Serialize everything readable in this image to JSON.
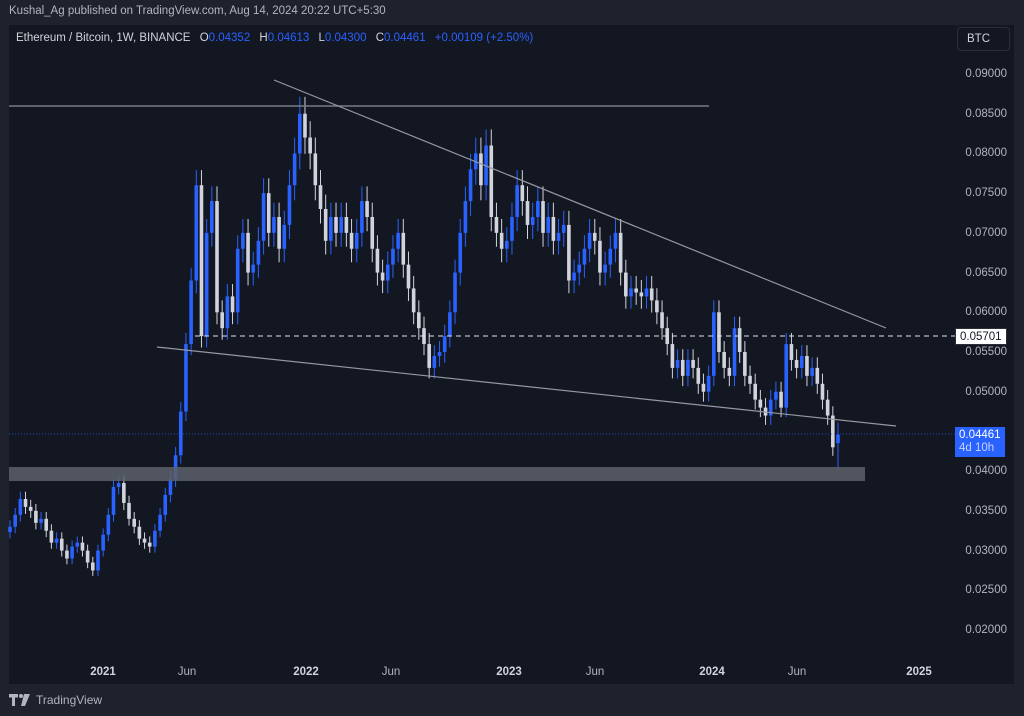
{
  "publish_line": "Kushal_Ag published on TradingView.com, Aug 14, 2024 20:22 UTC+5:30",
  "legend": {
    "symbol": "Ethereum / Bitcoin, 1W, BINANCE",
    "open_label": "O",
    "open": "0.04352",
    "high_label": "H",
    "high": "0.04613",
    "low_label": "L",
    "low": "0.04300",
    "close_label": "C",
    "close": "0.04461",
    "change": "+0.00109 (+2.50%)"
  },
  "currency_button": "BTC",
  "price_tags": {
    "level_value": "0.05701",
    "last_price": "0.04461",
    "countdown": "4d 10h"
  },
  "footer": {
    "brand": "TradingView",
    "logo_icon": "tradingview-logo-icon"
  },
  "colors": {
    "up": "#2962ff",
    "down": "#d1d4dc",
    "background": "#131722",
    "outer": "#1e222d",
    "line": "#787b86"
  },
  "chart_data": {
    "type": "candlestick",
    "title": "Ethereum / Bitcoin, 1W, BINANCE",
    "xlabel": "",
    "ylabel": "BTC",
    "ylim": [
      0.0175,
      0.0925
    ],
    "y_ticks": [
      "0.09000",
      "0.08500",
      "0.08000",
      "0.07500",
      "0.07000",
      "0.06500",
      "0.06000",
      "0.05500",
      "0.05000",
      "0.04000",
      "0.03500",
      "0.03000",
      "0.02500",
      "0.02000"
    ],
    "x_ticks": [
      {
        "label": "2021",
        "year": true
      },
      {
        "label": "Jun",
        "year": false
      },
      {
        "label": "2022",
        "year": true
      },
      {
        "label": "Jun",
        "year": false
      },
      {
        "label": "2023",
        "year": true
      },
      {
        "label": "Jun",
        "year": false
      },
      {
        "label": "2024",
        "year": true
      },
      {
        "label": "Jun",
        "year": false
      },
      {
        "label": "2025",
        "year": true
      }
    ],
    "annotations": [
      {
        "type": "horizontal_segment",
        "price": 0.086,
        "from": "2020-08",
        "to": "2024-02",
        "label": "resistance"
      },
      {
        "type": "trendline",
        "from": {
          "date": "2021-12",
          "price": 0.0884
        },
        "to": {
          "date": "2024-10",
          "price": 0.0579
        },
        "label": "descending resistance"
      },
      {
        "type": "trendline",
        "from": {
          "date": "2021-05",
          "price": 0.0555
        },
        "to": {
          "date": "2024-10",
          "price": 0.0455
        },
        "label": "descending support"
      },
      {
        "type": "horizontal_dashed",
        "price": 0.05701
      },
      {
        "type": "zone",
        "price_from": 0.039,
        "price_to": 0.0407,
        "label": "support zone"
      }
    ],
    "weekly_closes_approx": [
      0.033,
      0.0345,
      0.0365,
      0.0355,
      0.035,
      0.0335,
      0.034,
      0.0325,
      0.031,
      0.0315,
      0.03,
      0.029,
      0.0305,
      0.031,
      0.03,
      0.0285,
      0.0275,
      0.03,
      0.032,
      0.0345,
      0.038,
      0.0385,
      0.036,
      0.034,
      0.033,
      0.0315,
      0.031,
      0.0305,
      0.0325,
      0.0345,
      0.037,
      0.039,
      0.042,
      0.0475,
      0.056,
      0.064,
      0.076,
      0.057,
      0.07,
      0.074,
      0.06,
      0.058,
      0.062,
      0.06,
      0.068,
      0.07,
      0.065,
      0.066,
      0.069,
      0.075,
      0.07,
      0.072,
      0.068,
      0.071,
      0.076,
      0.08,
      0.085,
      0.082,
      0.08,
      0.076,
      0.073,
      0.069,
      0.072,
      0.07,
      0.072,
      0.07,
      0.068,
      0.07,
      0.074,
      0.072,
      0.068,
      0.065,
      0.064,
      0.066,
      0.068,
      0.07,
      0.066,
      0.063,
      0.06,
      0.058,
      0.056,
      0.053,
      0.0545,
      0.055,
      0.057,
      0.06,
      0.065,
      0.07,
      0.074,
      0.078,
      0.08,
      0.076,
      0.081,
      0.072,
      0.07,
      0.068,
      0.069,
      0.072,
      0.076,
      0.074,
      0.071,
      0.072,
      0.074,
      0.07,
      0.072,
      0.069,
      0.07,
      0.071,
      0.064,
      0.065,
      0.066,
      0.068,
      0.07,
      0.069,
      0.065,
      0.066,
      0.068,
      0.07,
      0.065,
      0.062,
      0.063,
      0.0625,
      0.062,
      0.063,
      0.0615,
      0.06,
      0.058,
      0.056,
      0.053,
      0.054,
      0.052,
      0.054,
      0.053,
      0.051,
      0.05,
      0.052,
      0.06,
      0.055,
      0.053,
      0.052,
      0.058,
      0.055,
      0.052,
      0.051,
      0.049,
      0.048,
      0.047,
      0.049,
      0.05,
      0.048,
      0.056,
      0.054,
      0.053,
      0.0545,
      0.052,
      0.053,
      0.051,
      0.049,
      0.047,
      0.043,
      0.0446
    ],
    "last": {
      "open": 0.04352,
      "high": 0.04613,
      "low": 0.043,
      "close": 0.04461,
      "change": 0.00109,
      "change_pct": 2.5
    }
  }
}
